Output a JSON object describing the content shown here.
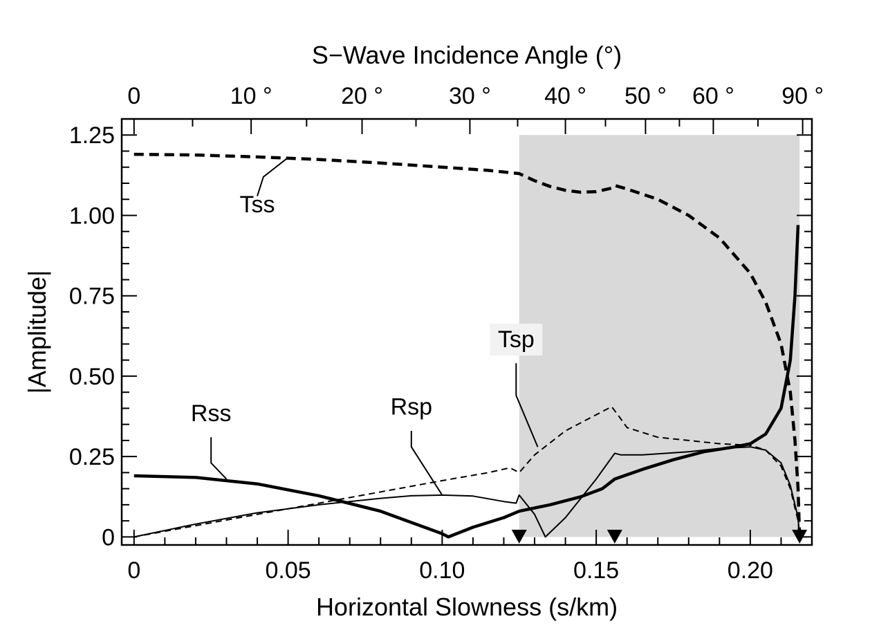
{
  "chart_data": {
    "type": "line",
    "xlabel": "Horizontal Slowness (s/km)",
    "ylabel": "|Amplitude|",
    "top_axis_label": "S−Wave Incidence Angle (°)",
    "xlim": [
      -0.004,
      0.22
    ],
    "ylim": [
      -0.025,
      1.3
    ],
    "x_ticks": [
      0,
      0.05,
      0.1,
      0.15,
      0.2
    ],
    "x_tick_labels": [
      "0",
      "0.05",
      "0.10",
      "0.15",
      "0.20"
    ],
    "y_ticks": [
      0,
      0.25,
      0.5,
      0.75,
      1.0,
      1.25
    ],
    "y_tick_labels": [
      "0",
      "0.25",
      "0.50",
      "0.75",
      "1.00",
      "1.25"
    ],
    "top_ticks": [
      {
        "label": "0",
        "x": 0.0
      },
      {
        "label": "10 °",
        "x": 0.038
      },
      {
        "label": "20 °",
        "x": 0.074
      },
      {
        "label": "30 °",
        "x": 0.109
      },
      {
        "label": "40 °",
        "x": 0.14
      },
      {
        "label": "50 °",
        "x": 0.166
      },
      {
        "label": "60 °",
        "x": 0.188
      },
      {
        "label": "90 °",
        "x": 0.217
      }
    ],
    "shaded_region": {
      "x": [
        0.125,
        0.216
      ],
      "y": [
        0,
        1.25
      ],
      "color": "#d9d9d9"
    },
    "markers": [
      0.125,
      0.156,
      0.216
    ],
    "series": [
      {
        "name": "Tss",
        "style": "thick-dashed",
        "points": [
          [
            0,
            1.19
          ],
          [
            0.02,
            1.188
          ],
          [
            0.04,
            1.182
          ],
          [
            0.06,
            1.174
          ],
          [
            0.08,
            1.163
          ],
          [
            0.1,
            1.15
          ],
          [
            0.115,
            1.14
          ],
          [
            0.125,
            1.13
          ],
          [
            0.13,
            1.108
          ],
          [
            0.135,
            1.09
          ],
          [
            0.14,
            1.078
          ],
          [
            0.145,
            1.072
          ],
          [
            0.15,
            1.074
          ],
          [
            0.155,
            1.085
          ],
          [
            0.156,
            1.093
          ],
          [
            0.16,
            1.082
          ],
          [
            0.17,
            1.05
          ],
          [
            0.18,
            1.0
          ],
          [
            0.19,
            0.93
          ],
          [
            0.2,
            0.82
          ],
          [
            0.205,
            0.73
          ],
          [
            0.21,
            0.6
          ],
          [
            0.213,
            0.45
          ],
          [
            0.2145,
            0.3
          ],
          [
            0.2155,
            0.15
          ],
          [
            0.216,
            0.0
          ]
        ]
      },
      {
        "name": "Rss",
        "style": "thick-solid",
        "points": [
          [
            0,
            0.19
          ],
          [
            0.02,
            0.185
          ],
          [
            0.04,
            0.165
          ],
          [
            0.06,
            0.128
          ],
          [
            0.08,
            0.08
          ],
          [
            0.09,
            0.045
          ],
          [
            0.1,
            0.01
          ],
          [
            0.102,
            0.0
          ],
          [
            0.11,
            0.03
          ],
          [
            0.12,
            0.06
          ],
          [
            0.125,
            0.08
          ],
          [
            0.135,
            0.1
          ],
          [
            0.145,
            0.125
          ],
          [
            0.152,
            0.15
          ],
          [
            0.156,
            0.18
          ],
          [
            0.165,
            0.21
          ],
          [
            0.175,
            0.24
          ],
          [
            0.185,
            0.265
          ],
          [
            0.195,
            0.28
          ],
          [
            0.2,
            0.29
          ],
          [
            0.205,
            0.32
          ],
          [
            0.21,
            0.4
          ],
          [
            0.213,
            0.55
          ],
          [
            0.2145,
            0.75
          ],
          [
            0.2155,
            0.97
          ]
        ]
      },
      {
        "name": "Rsp",
        "style": "thin-dashed",
        "points": [
          [
            0,
            0.0
          ],
          [
            0.02,
            0.035
          ],
          [
            0.04,
            0.07
          ],
          [
            0.06,
            0.105
          ],
          [
            0.08,
            0.14
          ],
          [
            0.1,
            0.175
          ],
          [
            0.115,
            0.2
          ],
          [
            0.122,
            0.215
          ],
          [
            0.125,
            0.2
          ],
          [
            0.13,
            0.255
          ],
          [
            0.14,
            0.33
          ],
          [
            0.15,
            0.38
          ],
          [
            0.155,
            0.405
          ],
          [
            0.157,
            0.38
          ],
          [
            0.16,
            0.34
          ],
          [
            0.17,
            0.31
          ],
          [
            0.18,
            0.3
          ],
          [
            0.19,
            0.29
          ],
          [
            0.2,
            0.285
          ],
          [
            0.205,
            0.27
          ],
          [
            0.21,
            0.22
          ],
          [
            0.213,
            0.15
          ],
          [
            0.2155,
            0.05
          ],
          [
            0.216,
            0.0
          ]
        ]
      },
      {
        "name": "Tsp",
        "style": "thin-solid",
        "points": [
          [
            0,
            0.0
          ],
          [
            0.02,
            0.04
          ],
          [
            0.04,
            0.075
          ],
          [
            0.06,
            0.1
          ],
          [
            0.08,
            0.12
          ],
          [
            0.09,
            0.128
          ],
          [
            0.1,
            0.13
          ],
          [
            0.11,
            0.127
          ],
          [
            0.12,
            0.11
          ],
          [
            0.124,
            0.105
          ],
          [
            0.125,
            0.13
          ],
          [
            0.13,
            0.07
          ],
          [
            0.1335,
            0.0
          ],
          [
            0.14,
            0.06
          ],
          [
            0.15,
            0.18
          ],
          [
            0.156,
            0.26
          ],
          [
            0.158,
            0.255
          ],
          [
            0.165,
            0.255
          ],
          [
            0.18,
            0.265
          ],
          [
            0.19,
            0.275
          ],
          [
            0.2,
            0.28
          ],
          [
            0.205,
            0.27
          ],
          [
            0.21,
            0.23
          ],
          [
            0.213,
            0.16
          ],
          [
            0.2155,
            0.06
          ],
          [
            0.216,
            0.0
          ]
        ]
      }
    ],
    "annotations": [
      {
        "text": "Tss",
        "label_pos": [
          0.04,
          1.01
        ],
        "leader": [
          [
            0.04,
            1.06
          ],
          [
            0.042,
            1.12
          ],
          [
            0.05,
            1.18
          ]
        ]
      },
      {
        "text": "Rss",
        "label_pos": [
          0.025,
          0.36
        ],
        "leader": [
          [
            0.025,
            0.31
          ],
          [
            0.025,
            0.23
          ],
          [
            0.03,
            0.18
          ]
        ]
      },
      {
        "text": "Rsp",
        "label_pos": [
          0.09,
          0.38
        ],
        "leader": [
          [
            0.09,
            0.33
          ],
          [
            0.09,
            0.28
          ],
          [
            0.1,
            0.13
          ]
        ]
      },
      {
        "text": "Tsp",
        "label_pos": [
          0.124,
          0.59
        ],
        "leader": [
          [
            0.124,
            0.54
          ],
          [
            0.124,
            0.44
          ],
          [
            0.131,
            0.28
          ]
        ]
      }
    ]
  }
}
